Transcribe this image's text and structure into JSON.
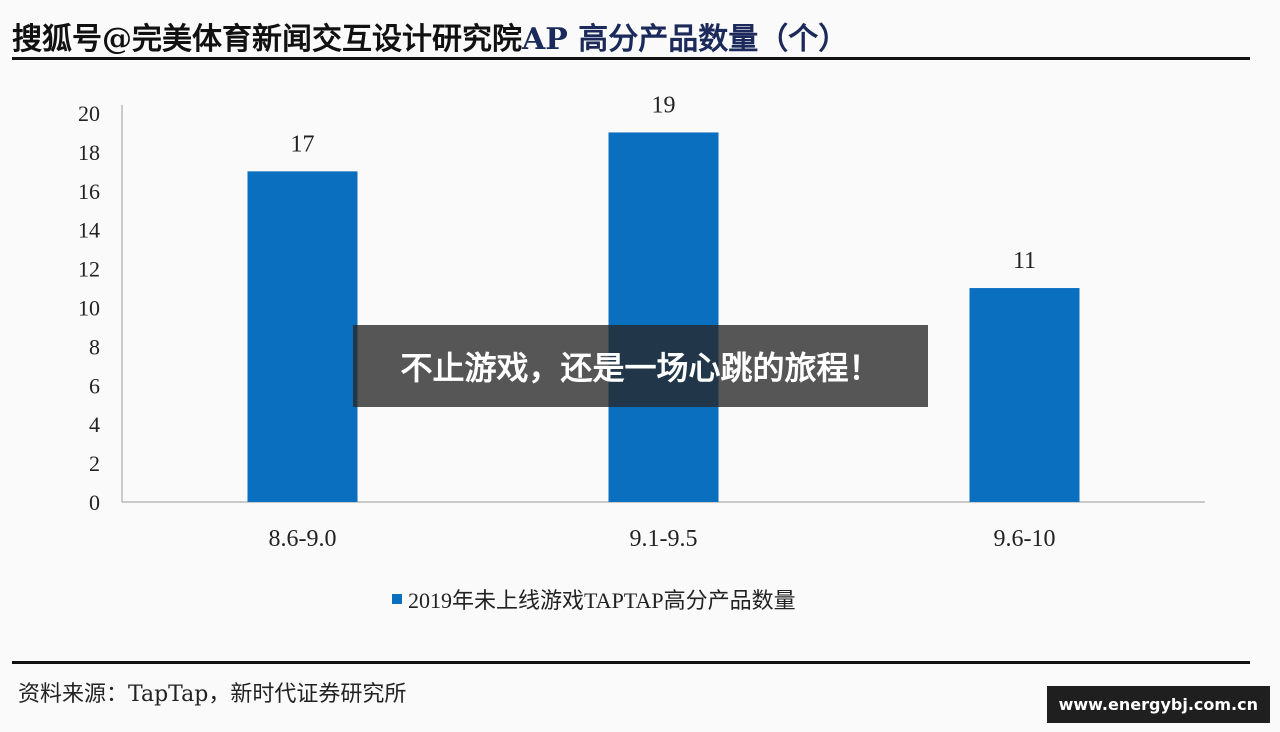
{
  "header": {
    "watermark": "搜狐号@完美体育新闻交互设计研究院",
    "title_visible": "AP 高分产品数量（个）"
  },
  "chart_data": {
    "type": "bar",
    "categories": [
      "8.6-9.0",
      "9.1-9.5",
      "9.6-10"
    ],
    "series": [
      {
        "name": "2019年未上线游戏TAPTAP高分产品数量",
        "values": [
          17,
          19,
          11
        ]
      }
    ],
    "ylim": [
      0,
      20
    ],
    "yticks": [
      0,
      2,
      4,
      6,
      8,
      10,
      12,
      14,
      16,
      18,
      20
    ],
    "grid": false,
    "legend": "bottom",
    "color": "#0b6fc0"
  },
  "overlay_text": "不止游戏，还是一场心跳的旅程！",
  "source": "资料来源：TapTap，新时代证券研究所",
  "site": "www.energybj.com.cn"
}
